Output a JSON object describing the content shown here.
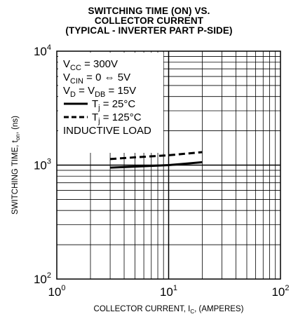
{
  "chart_data": {
    "type": "line",
    "title": [
      "SWITCHING TIME (ON) VS.",
      "COLLECTOR CURRENT",
      "(TYPICAL - INVERTER PART P-SIDE)"
    ],
    "xlabel": {
      "pre": "COLLECTOR CURRENT, I",
      "sub": "C",
      "post": ", (AMPERES)"
    },
    "ylabel": {
      "pre": "SWITCHING TIME, t",
      "sub": "on",
      "post": ", (ns)"
    },
    "xscale": "log",
    "yscale": "log",
    "xlim": [
      1,
      100
    ],
    "ylim": [
      100,
      10000
    ],
    "grid": true,
    "x_ticks": [
      {
        "base": "10",
        "exp": "0"
      },
      {
        "base": "10",
        "exp": "1"
      },
      {
        "base": "10",
        "exp": "2"
      }
    ],
    "y_ticks": [
      {
        "base": "10",
        "exp": "4"
      },
      {
        "base": "10",
        "exp": "3"
      },
      {
        "base": "10",
        "exp": "2"
      }
    ],
    "conditions": [
      {
        "parts": [
          {
            "t": "V"
          },
          {
            "t": "CC",
            "sub": true
          },
          {
            "t": " = 300V"
          }
        ]
      },
      {
        "parts": [
          {
            "t": "V"
          },
          {
            "t": "CIN",
            "sub": true
          },
          {
            "t": " = 0 ⇔ 5V"
          }
        ]
      },
      {
        "parts": [
          {
            "t": "V"
          },
          {
            "t": "D",
            "sub": true
          },
          {
            "t": " = V"
          },
          {
            "t": "DB",
            "sub": true
          },
          {
            "t": " = 15V"
          }
        ]
      }
    ],
    "legend_position": "top-left",
    "series": [
      {
        "name": {
          "pre": "T",
          "sub": "j",
          "post": " = 25°C"
        },
        "style": "solid",
        "x": [
          3,
          5,
          10,
          20
        ],
        "y": [
          950,
          970,
          1000,
          1060
        ]
      },
      {
        "name": {
          "pre": "T",
          "sub": "j",
          "post": " = 125°C"
        },
        "style": "dashed",
        "x": [
          3,
          5,
          10,
          20
        ],
        "y": [
          1130,
          1170,
          1220,
          1300
        ]
      }
    ],
    "note": "INDUCTIVE LOAD"
  }
}
